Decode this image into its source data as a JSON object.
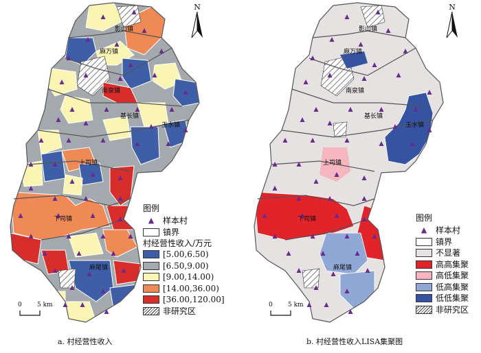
{
  "map_a": {
    "caption": "a. 村经营性收入",
    "legend": {
      "title": "图例",
      "sample_village": "样本村",
      "town_boundary": "镇界",
      "income_title": "村经营性收入/万元",
      "classes": [
        {
          "label": "[5.00,6.50)",
          "color": "#3e5fa8"
        },
        {
          "label": "[6.50,9.00)",
          "color": "#a4a9ad"
        },
        {
          "label": "[9.00,14.00)",
          "color": "#fbf5b4"
        },
        {
          "label": "[14.00,36.00)",
          "color": "#ef8a56"
        },
        {
          "label": "[36.00,120.00]",
          "color": "#d72e2b"
        }
      ],
      "non_study": "非研究区"
    },
    "north": "N",
    "scale": {
      "zero": "0",
      "dist": "5 km"
    },
    "towns": [
      "影山镇",
      "麻万镇",
      "南泉镇",
      "基长镇",
      "玉水镇",
      "上司镇",
      "下司镇",
      "麻尾镇"
    ]
  },
  "map_b": {
    "caption": "b. 村经营性收入LISA集聚图",
    "legend": {
      "title": "图例",
      "sample_village": "样本村",
      "town_boundary": "镇界",
      "classes": [
        {
          "label": "不显著",
          "color": "#e6e2e2"
        },
        {
          "label": "高高集聚",
          "color": "#e1232a"
        },
        {
          "label": "高低集聚",
          "color": "#f6b6c0"
        },
        {
          "label": "低高集聚",
          "color": "#8fa8d6"
        },
        {
          "label": "低低集聚",
          "color": "#3553a0"
        }
      ],
      "non_study": "非研究区"
    },
    "north": "N",
    "scale": {
      "zero": "0",
      "dist": "5 km"
    },
    "towns": [
      "影山镇",
      "麻万镇",
      "南泉镇",
      "基长镇",
      "玉水镇",
      "上司镇",
      "下司镇",
      "麻尾镇"
    ]
  },
  "colors": {
    "marker": "#6a2b8f",
    "boundary": "#555555"
  }
}
